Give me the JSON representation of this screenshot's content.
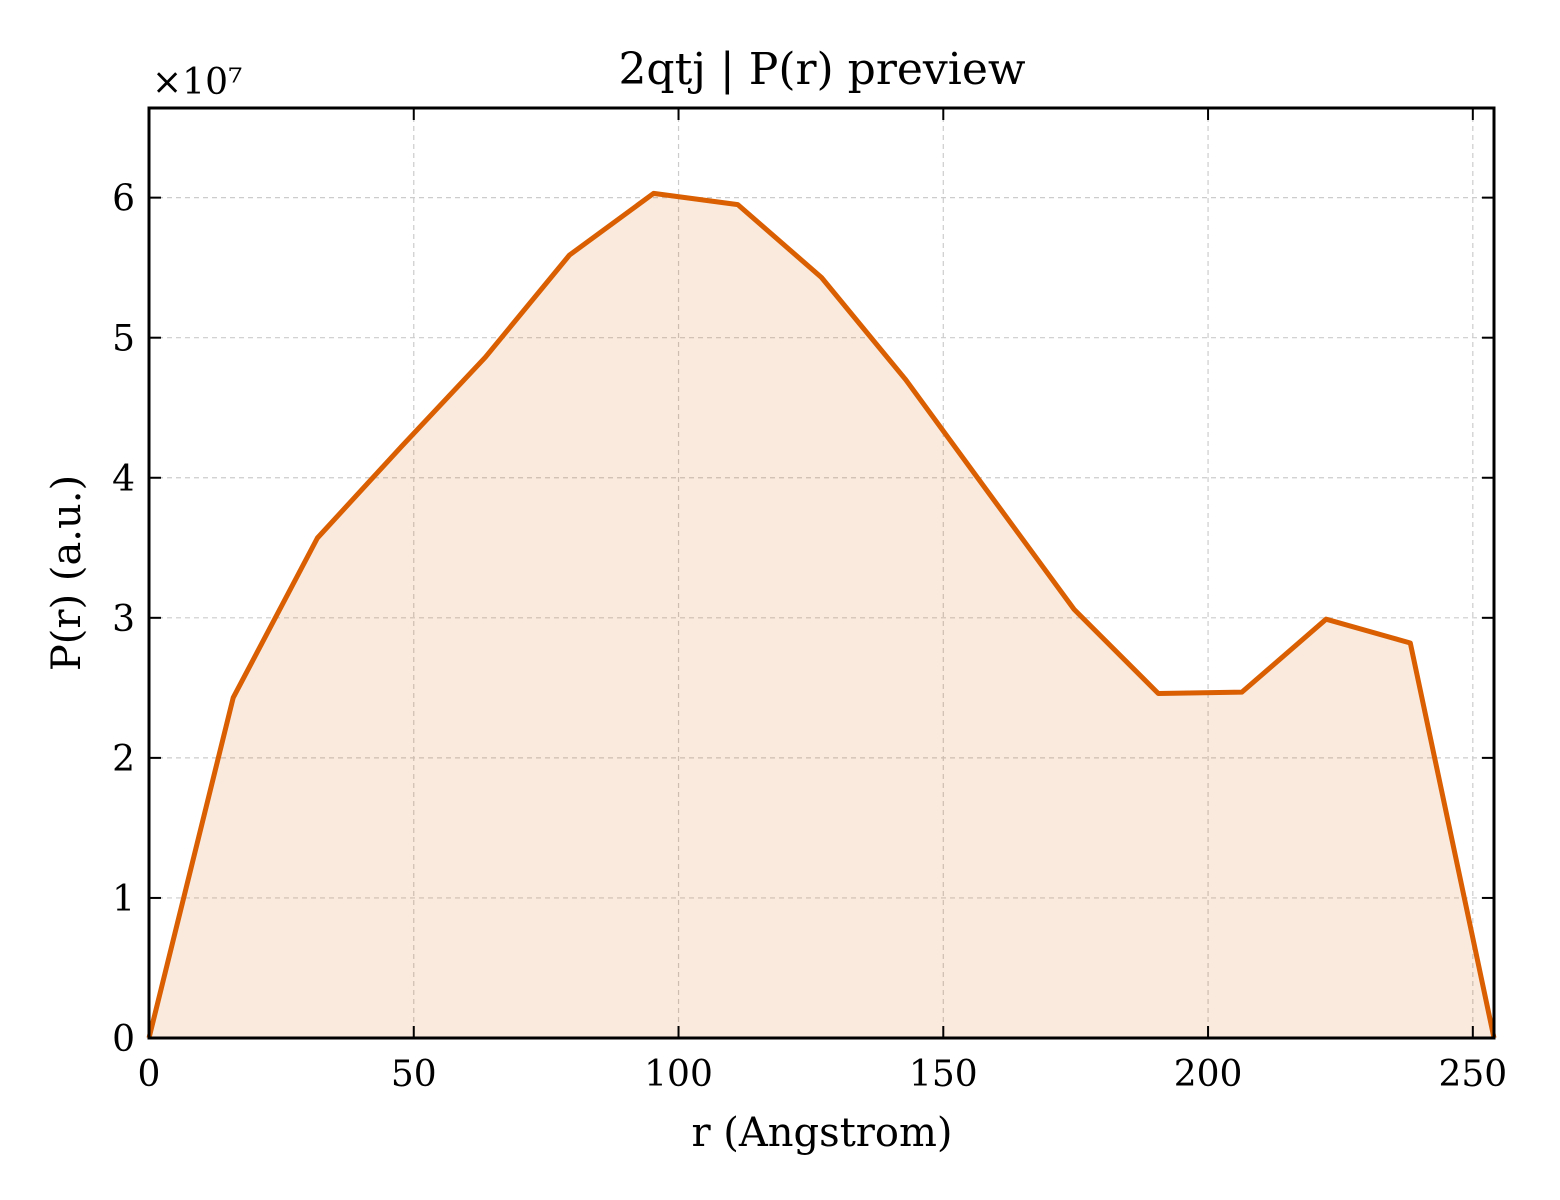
{
  "chart_data": {
    "type": "area",
    "title": "2qtj | P(r) preview",
    "xlabel": "r (Angstrom)",
    "ylabel": "P(r) (a.u.)",
    "y_multiplier": "×10⁷",
    "xlim": [
      0,
      254
    ],
    "ylim": [
      0,
      6.64
    ],
    "x_ticks": [
      0,
      50,
      100,
      150,
      200,
      250
    ],
    "y_ticks": [
      0,
      1,
      2,
      3,
      4,
      5,
      6
    ],
    "grid": true,
    "legend": "none",
    "colors": {
      "line": "#d95f02",
      "fill": "#d95f02"
    },
    "series": [
      {
        "x": [
          0,
          15.9,
          31.8,
          47.6,
          63.5,
          79.4,
          95.3,
          111.2,
          127.0,
          142.9,
          158.8,
          174.7,
          190.6,
          206.4,
          222.3,
          238.2,
          254.0
        ],
        "y": [
          0,
          2.43,
          3.57,
          4.22,
          4.86,
          5.59,
          6.03,
          5.95,
          5.43,
          4.7,
          3.88,
          3.06,
          2.46,
          2.47,
          2.99,
          2.82,
          0
        ]
      }
    ]
  }
}
